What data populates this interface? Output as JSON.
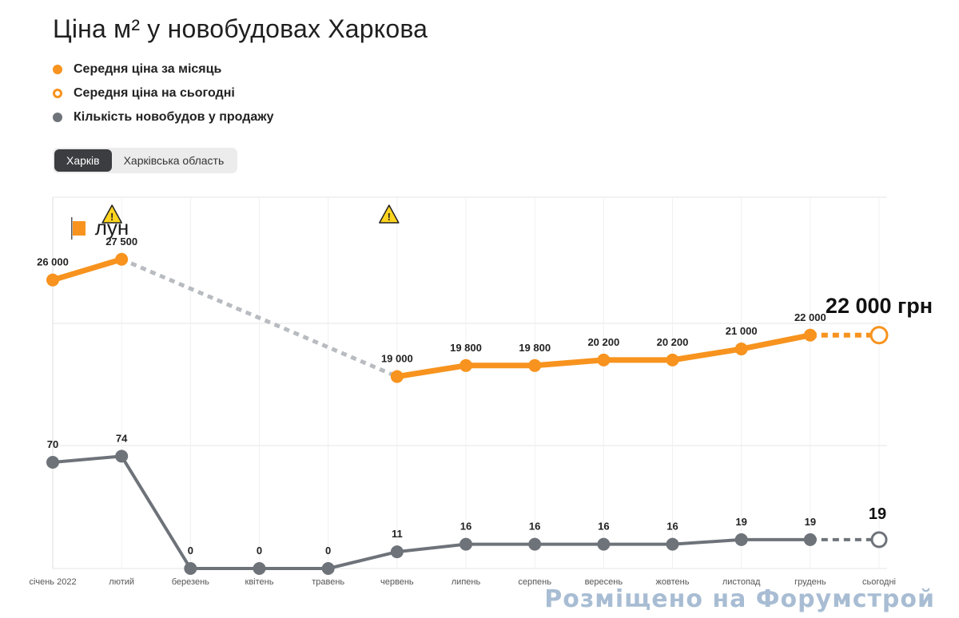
{
  "page": {
    "title": "Ціна м² у новобудовах Харкова",
    "tabs": [
      {
        "label": "Харків",
        "active": true
      },
      {
        "label": "Харківська область",
        "active": false
      }
    ],
    "logo_text": "лун",
    "watermark": "Розміщено на Форумстрой"
  },
  "colors": {
    "orange": "#f7931e",
    "gray": "#6e737a",
    "gap": "#b8bcc1",
    "grid": "#e6e6e6"
  },
  "chart_data": {
    "type": "line",
    "legend": [
      {
        "label": "Середня ціна за місяць",
        "marker": "solid-orange"
      },
      {
        "label": "Середня ціна на сьогодні",
        "marker": "hollow-orange"
      },
      {
        "label": "Кількість новобудов у продажу",
        "marker": "solid-gray"
      }
    ],
    "categories": [
      "січень 2022",
      "лютий",
      "березень",
      "квітень",
      "травень",
      "червень",
      "липень",
      "серпень",
      "вересень",
      "жовтень",
      "листопад",
      "грудень",
      "сьогодні"
    ],
    "series": [
      {
        "name": "Середня ціна за місяць",
        "values": [
          26000,
          27500,
          null,
          null,
          null,
          19000,
          19800,
          19800,
          20200,
          20200,
          21000,
          22000,
          null
        ],
        "labels": [
          "26 000",
          "27 500",
          "",
          "",
          "",
          "19 000",
          "19 800",
          "19 800",
          "20 200",
          "20 200",
          "21 000",
          "22 000",
          ""
        ]
      },
      {
        "name": "Кількість новобудов у продажу",
        "values": [
          70,
          74,
          0,
          0,
          0,
          11,
          16,
          16,
          16,
          16,
          19,
          19,
          19
        ],
        "labels": [
          "70",
          "74",
          "0",
          "0",
          "0",
          "11",
          "16",
          "16",
          "16",
          "16",
          "19",
          "19",
          ""
        ]
      }
    ],
    "today": {
      "price_value": 22000,
      "price_label": "22 000 грн",
      "count_value": 19,
      "count_label": "19"
    },
    "warnings_at": [
      "лютий",
      "червень"
    ],
    "price_ylim": [
      14000,
      32000
    ],
    "count_ylim": [
      0,
      80
    ],
    "grid": true
  }
}
